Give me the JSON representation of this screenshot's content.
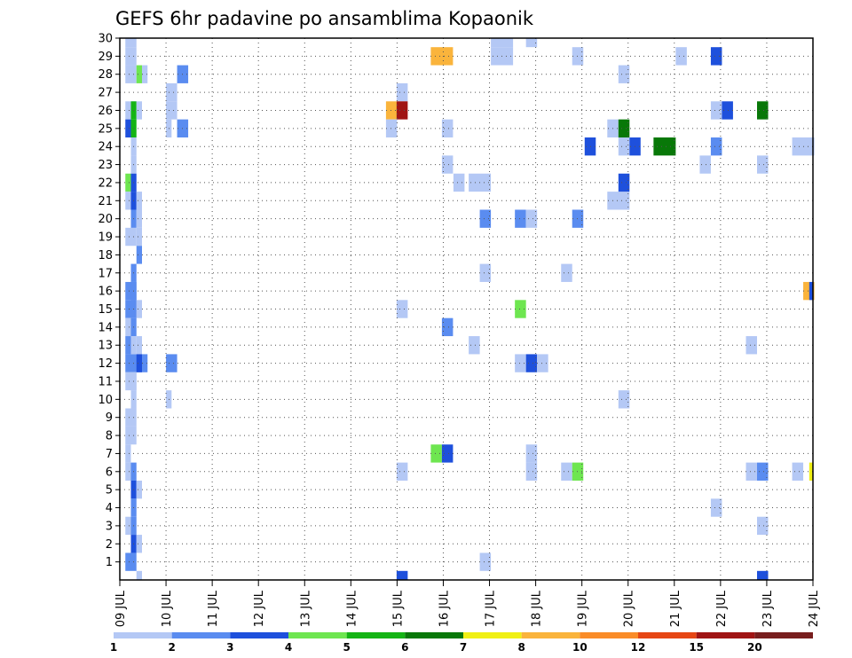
{
  "chart_data": {
    "type": "heatmap",
    "title": "GEFS 6hr padavine po ansamblima Kopaonik",
    "xlabel": "",
    "ylabel": "",
    "x_start": "09 JUL",
    "x_end": "24 JUL",
    "x_ticks": [
      "09 JUL",
      "10 JUL",
      "11 JUL",
      "12 JUL",
      "13 JUL",
      "14 JUL",
      "15 JUL",
      "16 JUL",
      "17 JUL",
      "18 JUL",
      "19 JUL",
      "20 JUL",
      "21 JUL",
      "22 JUL",
      "23 JUL",
      "24 JUL"
    ],
    "y_ticks": [
      "1",
      "2",
      "3",
      "4",
      "5",
      "6",
      "7",
      "8",
      "9",
      "10",
      "11",
      "12",
      "13",
      "14",
      "15",
      "16",
      "17",
      "18",
      "19",
      "20",
      "21",
      "22",
      "23",
      "24",
      "25",
      "26",
      "27",
      "28",
      "29",
      "30"
    ],
    "ylim": [
      0,
      30
    ],
    "grid": true,
    "colorbar": {
      "labels": [
        "1",
        "2",
        "3",
        "4",
        "5",
        "6",
        "7",
        "8",
        "10",
        "12",
        "15",
        "20"
      ],
      "colors": [
        "#b4c8f5",
        "#5a8cf0",
        "#1e50dc",
        "#6ee650",
        "#14b414",
        "#087808",
        "#f0f014",
        "#fab43c",
        "#fa8c28",
        "#e64614",
        "#a01414",
        "#781e1e"
      ]
    },
    "cells": [
      {
        "x": 0.12,
        "w": 0.12,
        "y": 30,
        "c": 0
      },
      {
        "x": 0.12,
        "w": 0.24,
        "y": 29,
        "c": 0
      },
      {
        "x": 0.12,
        "w": 0.12,
        "y": 28,
        "c": 0
      },
      {
        "x": 0.12,
        "w": 0.24,
        "y": 26,
        "c": 0
      },
      {
        "x": 0.12,
        "w": 0.12,
        "y": 25,
        "c": 2
      },
      {
        "x": 0.12,
        "w": 0.12,
        "y": 22,
        "c": 3
      },
      {
        "x": 0.12,
        "w": 0.24,
        "y": 21,
        "c": 0
      },
      {
        "x": 0.12,
        "w": 0.24,
        "y": 19,
        "c": 0
      },
      {
        "x": 0.12,
        "w": 0.24,
        "y": 16,
        "c": 1
      },
      {
        "x": 0.12,
        "w": 0.24,
        "y": 15,
        "c": 1
      },
      {
        "x": 0.12,
        "w": 0.12,
        "y": 14,
        "c": 0
      },
      {
        "x": 0.12,
        "w": 0.12,
        "y": 13,
        "c": 1
      },
      {
        "x": 0.12,
        "w": 0.48,
        "y": 12,
        "c": 1
      },
      {
        "x": 0.12,
        "w": 0.24,
        "y": 11,
        "c": 0
      },
      {
        "x": 0.12,
        "w": 0.24,
        "y": 9,
        "c": 0
      },
      {
        "x": 0.12,
        "w": 0.24,
        "y": 8,
        "c": 0
      },
      {
        "x": 0.12,
        "w": 0.12,
        "y": 7,
        "c": 0
      },
      {
        "x": 0.12,
        "w": 0.12,
        "y": 6,
        "c": 0
      },
      {
        "x": 0.12,
        "w": 0.12,
        "y": 3,
        "c": 0
      },
      {
        "x": 0.12,
        "w": 0.24,
        "y": 1,
        "c": 1
      },
      {
        "x": 0.24,
        "w": 0.12,
        "y": 30,
        "c": 0
      },
      {
        "x": 0.24,
        "w": 0.12,
        "y": 28,
        "c": 0
      },
      {
        "x": 0.24,
        "w": 0.12,
        "y": 26,
        "c": 4
      },
      {
        "x": 0.24,
        "w": 0.12,
        "y": 25,
        "c": 4
      },
      {
        "x": 0.24,
        "w": 0.12,
        "y": 24,
        "c": 0
      },
      {
        "x": 0.24,
        "w": 0.12,
        "y": 23,
        "c": 0
      },
      {
        "x": 0.24,
        "w": 0.12,
        "y": 22,
        "c": 2
      },
      {
        "x": 0.24,
        "w": 0.12,
        "y": 21,
        "c": 2
      },
      {
        "x": 0.24,
        "w": 0.12,
        "y": 20,
        "c": 1
      },
      {
        "x": 0.24,
        "w": 0.12,
        "y": 17,
        "c": 1
      },
      {
        "x": 0.24,
        "w": 0.12,
        "y": 16,
        "c": 1
      },
      {
        "x": 0.24,
        "w": 0.12,
        "y": 15,
        "c": 1
      },
      {
        "x": 0.24,
        "w": 0.12,
        "y": 14,
        "c": 1
      },
      {
        "x": 0.24,
        "w": 0.12,
        "y": 13,
        "c": 0
      },
      {
        "x": 0.24,
        "w": 0.12,
        "y": 11,
        "c": 0
      },
      {
        "x": 0.24,
        "w": 0.12,
        "y": 10,
        "c": 0
      },
      {
        "x": 0.24,
        "w": 0.12,
        "y": 6,
        "c": 1
      },
      {
        "x": 0.24,
        "w": 0.12,
        "y": 5,
        "c": 2
      },
      {
        "x": 0.24,
        "w": 0.12,
        "y": 4,
        "c": 1
      },
      {
        "x": 0.24,
        "w": 0.12,
        "y": 3,
        "c": 1
      },
      {
        "x": 0.24,
        "w": 0.12,
        "y": 2,
        "c": 2
      },
      {
        "x": 0.36,
        "w": 0.12,
        "y": 28,
        "c": 3
      },
      {
        "x": 0.36,
        "w": 0.12,
        "y": 20,
        "c": 0
      },
      {
        "x": 0.36,
        "w": 0.12,
        "y": 21,
        "c": 0
      },
      {
        "x": 0.36,
        "w": 0.12,
        "y": 19,
        "c": 0
      },
      {
        "x": 0.36,
        "w": 0.12,
        "y": 18,
        "c": 1
      },
      {
        "x": 0.36,
        "w": 0.12,
        "y": 15,
        "c": 0
      },
      {
        "x": 0.36,
        "w": 0.12,
        "y": 13,
        "c": 0
      },
      {
        "x": 0.36,
        "w": 0.12,
        "y": 12,
        "c": 2
      },
      {
        "x": 0.36,
        "w": 0.12,
        "y": 5,
        "c": 0
      },
      {
        "x": 0.36,
        "w": 0.12,
        "y": 2,
        "c": 0
      },
      {
        "x": 0.36,
        "w": 0.12,
        "y": 0,
        "c": 0
      },
      {
        "x": 0.36,
        "w": 0.12,
        "y": 26,
        "c": 0
      },
      {
        "x": 0.48,
        "w": 0.12,
        "y": 28,
        "c": 0
      },
      {
        "x": 1.0,
        "w": 0.24,
        "y": 27,
        "c": 0
      },
      {
        "x": 1.0,
        "w": 0.24,
        "y": 26,
        "c": 0
      },
      {
        "x": 1.0,
        "w": 0.12,
        "y": 25,
        "c": 0
      },
      {
        "x": 1.0,
        "w": 0.24,
        "y": 12,
        "c": 1
      },
      {
        "x": 1.0,
        "w": 0.12,
        "y": 10,
        "c": 0
      },
      {
        "x": 1.24,
        "w": 0.24,
        "y": 28,
        "c": 1
      },
      {
        "x": 1.24,
        "w": 0.24,
        "y": 25,
        "c": 1
      },
      {
        "x": 5.76,
        "w": 0.24,
        "y": 26,
        "c": 7
      },
      {
        "x": 5.76,
        "w": 0.24,
        "y": 25,
        "c": 0
      },
      {
        "x": 5.99,
        "w": 0.24,
        "y": 27,
        "c": 0
      },
      {
        "x": 5.99,
        "w": 0.24,
        "y": 26,
        "c": 10
      },
      {
        "x": 5.99,
        "w": 0.24,
        "y": 15,
        "c": 0
      },
      {
        "x": 5.99,
        "w": 0.24,
        "y": 6,
        "c": 0
      },
      {
        "x": 5.99,
        "w": 0.24,
        "y": 0,
        "c": 2
      },
      {
        "x": 6.73,
        "w": 0.48,
        "y": 29,
        "c": 7
      },
      {
        "x": 6.73,
        "w": 0.24,
        "y": 7,
        "c": 3
      },
      {
        "x": 6.97,
        "w": 0.24,
        "y": 7,
        "c": 2
      },
      {
        "x": 6.97,
        "w": 0.24,
        "y": 25,
        "c": 0
      },
      {
        "x": 6.97,
        "w": 0.24,
        "y": 23,
        "c": 0
      },
      {
        "x": 6.97,
        "w": 0.24,
        "y": 14,
        "c": 1
      },
      {
        "x": 7.22,
        "w": 0.24,
        "y": 22,
        "c": 0
      },
      {
        "x": 7.55,
        "w": 0.48,
        "y": 22,
        "c": 0
      },
      {
        "x": 7.55,
        "w": 0.24,
        "y": 13,
        "c": 0
      },
      {
        "x": 7.79,
        "w": 0.24,
        "y": 20,
        "c": 1
      },
      {
        "x": 7.79,
        "w": 0.24,
        "y": 17,
        "c": 0
      },
      {
        "x": 7.79,
        "w": 0.24,
        "y": 1,
        "c": 0
      },
      {
        "x": 8.03,
        "w": 0.48,
        "y": 30,
        "c": 0
      },
      {
        "x": 8.03,
        "w": 0.48,
        "y": 29,
        "c": 0
      },
      {
        "x": 8.55,
        "w": 0.24,
        "y": 20,
        "c": 1
      },
      {
        "x": 8.55,
        "w": 0.24,
        "y": 15,
        "c": 3
      },
      {
        "x": 8.55,
        "w": 0.24,
        "y": 12,
        "c": 0
      },
      {
        "x": 8.79,
        "w": 0.24,
        "y": 30,
        "c": 0
      },
      {
        "x": 8.79,
        "w": 0.24,
        "y": 20,
        "c": 0
      },
      {
        "x": 8.79,
        "w": 0.24,
        "y": 12,
        "c": 2
      },
      {
        "x": 8.79,
        "w": 0.24,
        "y": 7,
        "c": 0
      },
      {
        "x": 8.79,
        "w": 0.24,
        "y": 6,
        "c": 0
      },
      {
        "x": 9.03,
        "w": 0.24,
        "y": 12,
        "c": 0
      },
      {
        "x": 9.55,
        "w": 0.24,
        "y": 17,
        "c": 0
      },
      {
        "x": 9.55,
        "w": 0.24,
        "y": 6,
        "c": 0
      },
      {
        "x": 9.79,
        "w": 0.24,
        "y": 6,
        "c": 3
      },
      {
        "x": 9.79,
        "w": 0.24,
        "y": 29,
        "c": 0
      },
      {
        "x": 9.79,
        "w": 0.24,
        "y": 20,
        "c": 1
      },
      {
        "x": 10.06,
        "w": 0.24,
        "y": 24,
        "c": 2
      },
      {
        "x": 10.55,
        "w": 0.24,
        "y": 25,
        "c": 0
      },
      {
        "x": 10.55,
        "w": 0.48,
        "y": 21,
        "c": 0
      },
      {
        "x": 10.79,
        "w": 0.24,
        "y": 28,
        "c": 0
      },
      {
        "x": 10.79,
        "w": 0.24,
        "y": 24,
        "c": 0
      },
      {
        "x": 10.79,
        "w": 0.24,
        "y": 25,
        "c": 5
      },
      {
        "x": 10.79,
        "w": 0.24,
        "y": 22,
        "c": 2
      },
      {
        "x": 10.79,
        "w": 0.24,
        "y": 10,
        "c": 0
      },
      {
        "x": 11.03,
        "w": 0.24,
        "y": 24,
        "c": 2
      },
      {
        "x": 11.55,
        "w": 0.48,
        "y": 24,
        "c": 5
      },
      {
        "x": 12.03,
        "w": 0.24,
        "y": 29,
        "c": 0
      },
      {
        "x": 12.55,
        "w": 0.24,
        "y": 23,
        "c": 0
      },
      {
        "x": 12.79,
        "w": 0.24,
        "y": 29,
        "c": 2
      },
      {
        "x": 12.79,
        "w": 0.24,
        "y": 26,
        "c": 0
      },
      {
        "x": 12.79,
        "w": 0.24,
        "y": 24,
        "c": 1
      },
      {
        "x": 12.79,
        "w": 0.24,
        "y": 4,
        "c": 0
      },
      {
        "x": 13.03,
        "w": 0.24,
        "y": 26,
        "c": 2
      },
      {
        "x": 13.55,
        "w": 0.24,
        "y": 13,
        "c": 0
      },
      {
        "x": 13.55,
        "w": 0.24,
        "y": 6,
        "c": 0
      },
      {
        "x": 13.79,
        "w": 0.24,
        "y": 26,
        "c": 5
      },
      {
        "x": 13.79,
        "w": 0.24,
        "y": 23,
        "c": 0
      },
      {
        "x": 13.79,
        "w": 0.24,
        "y": 6,
        "c": 1
      },
      {
        "x": 13.79,
        "w": 0.24,
        "y": 3,
        "c": 0
      },
      {
        "x": 13.79,
        "w": 0.24,
        "y": 0,
        "c": 2
      },
      {
        "x": 14.55,
        "w": 0.48,
        "y": 24,
        "c": 0
      },
      {
        "x": 14.55,
        "w": 0.24,
        "y": 6,
        "c": 0
      },
      {
        "x": 14.79,
        "w": 0.24,
        "y": 16,
        "c": 7
      },
      {
        "x": 14.92,
        "w": 0.08,
        "y": 16,
        "c": 2
      },
      {
        "x": 14.92,
        "w": 0.08,
        "y": 6,
        "c": 6
      }
    ]
  }
}
